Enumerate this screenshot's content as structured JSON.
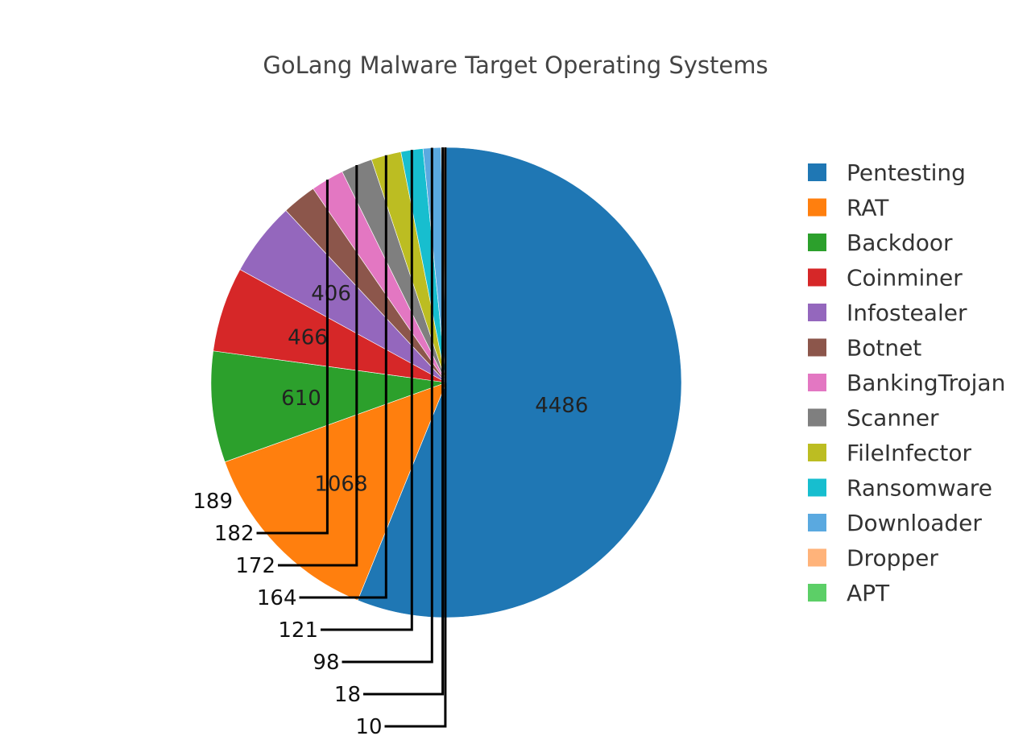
{
  "chart_data": {
    "type": "pie",
    "title": "GoLang Malware Target Operating Systems",
    "categories": [
      "Pentesting",
      "RAT",
      "Backdoor",
      "Coinminer",
      "Infostealer",
      "Botnet",
      "BankingTrojan",
      "Scanner",
      "FileInfector",
      "Ransomware",
      "Downloader",
      "Dropper",
      "APT"
    ],
    "values": [
      4486,
      1068,
      610,
      466,
      406,
      189,
      182,
      172,
      164,
      121,
      98,
      18,
      10
    ],
    "colors": [
      "#1f77b4",
      "#ff7f0e",
      "#2ca02c",
      "#d62728",
      "#9467bd",
      "#8c564b",
      "#e377c2",
      "#7f7f7f",
      "#bcbd22",
      "#17becf",
      "#5aa9e0",
      "#ffb37a",
      "#5ccf67"
    ],
    "legend_position": "right",
    "direction": "clockwise",
    "start": "top"
  }
}
